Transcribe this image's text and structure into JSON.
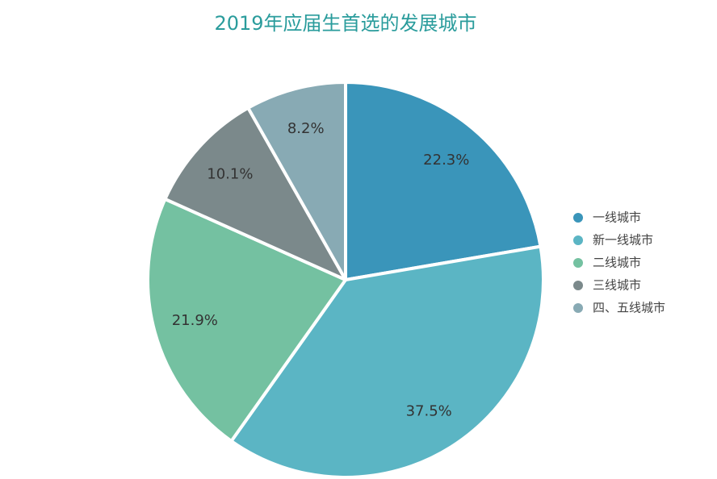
{
  "chart_data": {
    "type": "pie",
    "title": "2019年应届生首选的发展城市",
    "categories": [
      "一线城市",
      "新一线城市",
      "二线城市",
      "三线城市",
      "四、五线城市"
    ],
    "values": [
      22.3,
      37.5,
      21.9,
      10.1,
      8.2
    ],
    "value_labels": [
      "22.3%",
      "37.5%",
      "21.9%",
      "10.1%",
      "8.2%"
    ],
    "colors": [
      "#3a95ba",
      "#5bb5c4",
      "#74c1a1",
      "#7b898b",
      "#88aab4"
    ],
    "legend": "right"
  }
}
